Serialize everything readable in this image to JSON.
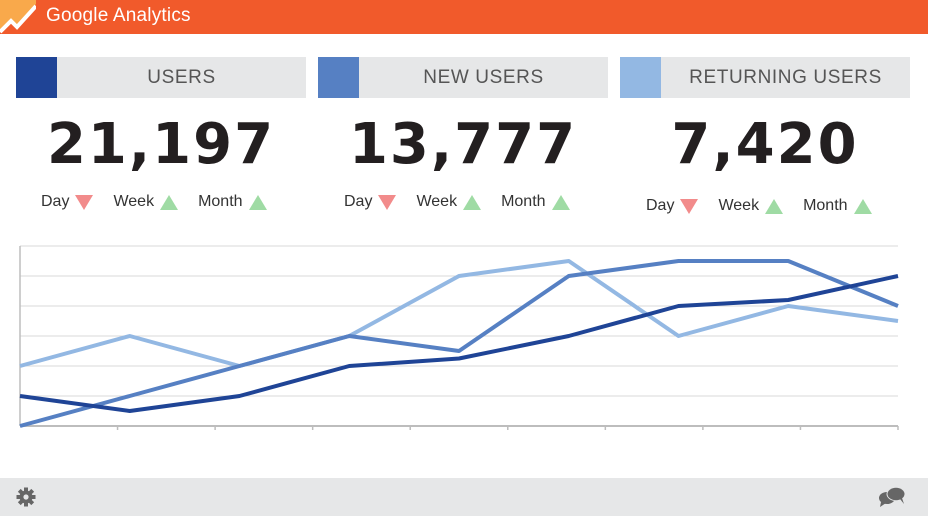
{
  "header": {
    "title": "Google Analytics",
    "logo_icon": "analytics-trend-icon",
    "background_color": "#f15a2b"
  },
  "metrics": [
    {
      "label": "USERS",
      "value": "21,197",
      "color": "#1f4496",
      "trends": [
        {
          "label": "Day",
          "direction": "down"
        },
        {
          "label": "Week",
          "direction": "up"
        },
        {
          "label": "Month",
          "direction": "up"
        }
      ]
    },
    {
      "label": "NEW USERS",
      "value": "13,777",
      "color": "#5680c3",
      "trends": [
        {
          "label": "Day",
          "direction": "down"
        },
        {
          "label": "Week",
          "direction": "up"
        },
        {
          "label": "Month",
          "direction": "up"
        }
      ]
    },
    {
      "label": "RETURNING USERS",
      "value": "7,420",
      "color": "#93b8e3",
      "trends": [
        {
          "label": "Day",
          "direction": "down"
        },
        {
          "label": "Week",
          "direction": "up"
        },
        {
          "label": "Month",
          "direction": "up"
        }
      ]
    }
  ],
  "trend_colors": {
    "up": "#9fdba4",
    "down": "#f28b8b"
  },
  "chart_data": {
    "type": "line",
    "title": "",
    "xlabel": "",
    "ylabel": "",
    "x": [
      1,
      2,
      3,
      4,
      5,
      6,
      7,
      8,
      9
    ],
    "ylim": [
      0,
      6
    ],
    "grid": true,
    "legend": "none",
    "series": [
      {
        "name": "Users",
        "color": "#1f4496",
        "values": [
          1,
          0.5,
          1,
          2,
          2.25,
          3,
          4,
          4.2,
          5
        ]
      },
      {
        "name": "New Users",
        "color": "#5680c3",
        "values": [
          0,
          1,
          2,
          3,
          2.5,
          5,
          5.5,
          5.5,
          4
        ]
      },
      {
        "name": "Returning Users",
        "color": "#93b8e3",
        "values": [
          2,
          3,
          2,
          3,
          5,
          5.5,
          3,
          4,
          3.5
        ]
      }
    ]
  },
  "footer": {
    "left_icon": "gear-icon",
    "right_icon": "chat-bubbles-icon"
  }
}
